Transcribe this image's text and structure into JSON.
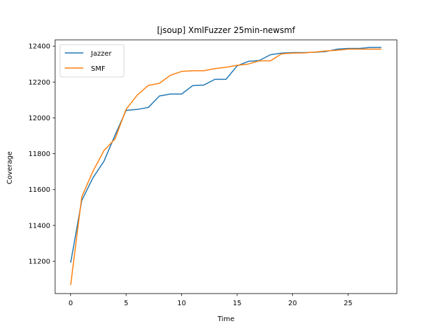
{
  "chart_data": {
    "type": "line",
    "title": "[jsoup] XmlFuzzer 25min-newsmf",
    "xlabel": "Time",
    "ylabel": "Coverage",
    "xlim": [
      -1.4,
      29.4
    ],
    "ylim": [
      11020,
      12435
    ],
    "xticks": [
      0,
      5,
      10,
      15,
      20,
      25
    ],
    "yticks": [
      11200,
      11400,
      11600,
      11800,
      12000,
      12200,
      12400
    ],
    "grid": false,
    "legend_position": "top-left",
    "x": [
      0,
      1,
      2,
      3,
      4,
      5,
      6,
      7,
      8,
      9,
      10,
      11,
      12,
      13,
      14,
      15,
      16,
      17,
      18,
      19,
      20,
      21,
      22,
      23,
      24,
      25,
      26,
      27,
      28
    ],
    "series": [
      {
        "name": "Jazzer",
        "color": "#1f77b4",
        "values": [
          11192,
          11539,
          11665,
          11758,
          11903,
          12042,
          12047,
          12058,
          12122,
          12133,
          12133,
          12180,
          12183,
          12215,
          12215,
          12290,
          12315,
          12320,
          12352,
          12361,
          12364,
          12364,
          12366,
          12370,
          12383,
          12387,
          12387,
          12393,
          12393
        ]
      },
      {
        "name": "SMF",
        "color": "#ff7f0e",
        "values": [
          11068,
          11559,
          11701,
          11817,
          11883,
          12048,
          12127,
          12181,
          12193,
          12238,
          12259,
          12263,
          12263,
          12275,
          12282,
          12293,
          12300,
          12318,
          12318,
          12357,
          12361,
          12362,
          12367,
          12373,
          12377,
          12383,
          12383,
          12383,
          12383
        ]
      }
    ]
  }
}
